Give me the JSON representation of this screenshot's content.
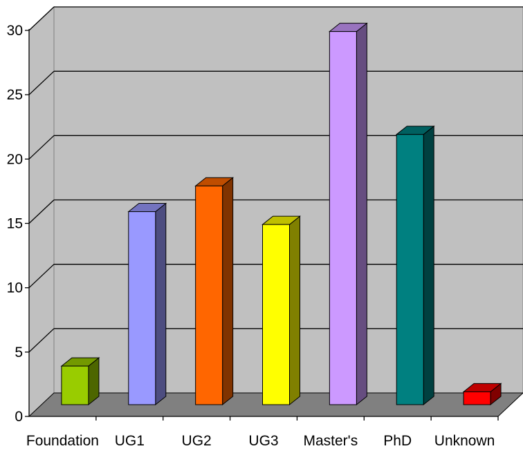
{
  "chart_data": {
    "type": "bar",
    "title": "",
    "xlabel": "",
    "ylabel": "",
    "categories": [
      "Foundation",
      "UG1",
      "UG2",
      "UG3",
      "Master's",
      "PhD",
      "Unknown"
    ],
    "values": [
      3,
      15,
      17,
      14,
      29,
      21,
      1
    ],
    "ylim": [
      0,
      30
    ],
    "yticks": [
      "0",
      "5",
      "10",
      "15",
      "20",
      "25",
      "30"
    ],
    "grid": true,
    "legend": "none",
    "style": "3d-column",
    "colors": {
      "bars": [
        {
          "front": "#99cc00",
          "side": "#4d6600",
          "top": "#739900"
        },
        {
          "front": "#9999ff",
          "side": "#4d4d80",
          "top": "#7373bf"
        },
        {
          "front": "#ff6600",
          "side": "#803300",
          "top": "#bf4d00"
        },
        {
          "front": "#ffff00",
          "side": "#808000",
          "top": "#bfbf00"
        },
        {
          "front": "#cc99ff",
          "side": "#664d80",
          "top": "#9973bf"
        },
        {
          "front": "#008080",
          "side": "#004040",
          "top": "#006060"
        },
        {
          "front": "#ff0000",
          "side": "#800000",
          "top": "#bf0000"
        }
      ],
      "wall": "#c0c0c0",
      "floor": "#808080",
      "gridline": "#000000"
    }
  }
}
